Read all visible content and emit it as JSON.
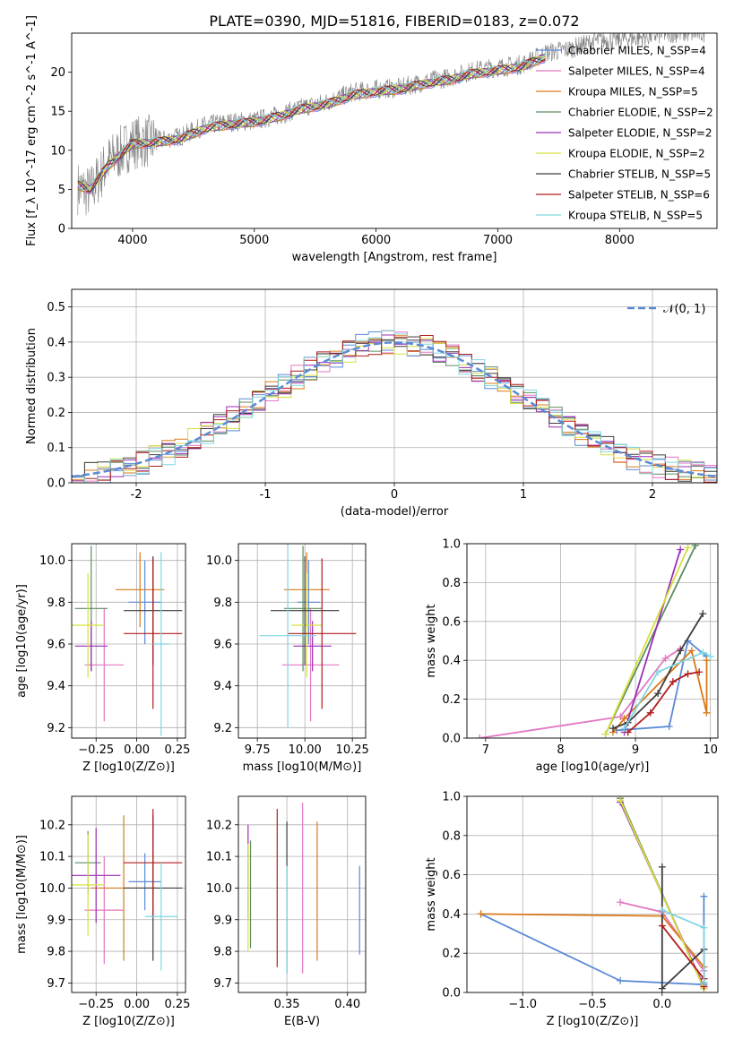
{
  "figure": {
    "title": "PLATE=0390, MJD=51816, FIBERID=0183, z=0.072"
  },
  "chart_data": [
    {
      "id": "spectrum",
      "type": "line",
      "xlabel": "wavelength [Angstrom, rest frame]",
      "ylabel": "Flux [f_λ 10^-17 erg cm^-2 s^-1 A^-1]",
      "xlim": [
        3500,
        8800
      ],
      "ylim": [
        0,
        25
      ],
      "xticks": [
        4000,
        5000,
        6000,
        7000,
        8000
      ],
      "yticks": [
        0,
        5,
        10,
        15,
        20
      ],
      "grid": false,
      "legend_position": "top-right",
      "data_color": "#808080",
      "data_points": [
        [
          3550,
          5.2
        ],
        [
          3650,
          4.6
        ],
        [
          3800,
          8.5
        ],
        [
          4000,
          11.0
        ],
        [
          4200,
          11.2
        ],
        [
          4400,
          11.8
        ],
        [
          4600,
          13.2
        ],
        [
          4800,
          13.6
        ],
        [
          5000,
          13.8
        ],
        [
          5200,
          14.5
        ],
        [
          5400,
          15.5
        ],
        [
          5600,
          16.2
        ],
        [
          5800,
          17.4
        ],
        [
          6000,
          17.8
        ],
        [
          6200,
          18.0
        ],
        [
          6400,
          18.8
        ],
        [
          6600,
          19.3
        ],
        [
          6800,
          20.2
        ],
        [
          7000,
          20.6
        ],
        [
          7200,
          21.0
        ],
        [
          7400,
          22.5
        ],
        [
          7600,
          23.0
        ],
        [
          7800,
          24.0
        ],
        [
          8000,
          24.2
        ],
        [
          8200,
          24.5
        ],
        [
          8400,
          25.0
        ],
        [
          8700,
          25.0
        ]
      ],
      "model_points": [
        [
          3550,
          5.5
        ],
        [
          3650,
          5.0
        ],
        [
          3800,
          8.0
        ],
        [
          4000,
          10.8
        ],
        [
          4200,
          11.0
        ],
        [
          4400,
          11.5
        ],
        [
          4600,
          12.8
        ],
        [
          4800,
          13.3
        ],
        [
          5000,
          13.6
        ],
        [
          5200,
          14.3
        ],
        [
          5400,
          15.3
        ],
        [
          5600,
          15.9
        ],
        [
          5800,
          17.0
        ],
        [
          6000,
          17.5
        ],
        [
          6200,
          17.8
        ],
        [
          6400,
          18.5
        ],
        [
          6600,
          19.0
        ],
        [
          6800,
          19.8
        ],
        [
          7000,
          20.2
        ],
        [
          7200,
          20.7
        ],
        [
          7400,
          22.0
        ]
      ],
      "series": [
        {
          "name": "Chabrier MILES, N_SSP=4",
          "color": "#5b8ad6"
        },
        {
          "name": "Salpeter MILES, N_SSP=4",
          "color": "#e377c2"
        },
        {
          "name": "Kroupa MILES, N_SSP=5",
          "color": "#d97a1a"
        },
        {
          "name": "Chabrier ELODIE, N_SSP=2",
          "color": "#5e8c61"
        },
        {
          "name": "Salpeter ELODIE, N_SSP=2",
          "color": "#9a2fb5"
        },
        {
          "name": "Kroupa ELODIE, N_SSP=2",
          "color": "#d6e03c"
        },
        {
          "name": "Chabrier STELIB, N_SSP=5",
          "color": "#3d3d3d"
        },
        {
          "name": "Salpeter STELIB, N_SSP=6",
          "color": "#b01c1c"
        },
        {
          "name": "Kroupa STELIB, N_SSP=5",
          "color": "#7fd6e0"
        }
      ]
    },
    {
      "id": "residual_histogram",
      "type": "line",
      "xlabel": "(data-model)/error",
      "ylabel": "Normed distribution",
      "xlim": [
        -2.5,
        2.5
      ],
      "ylim": [
        0,
        0.55
      ],
      "xticks": [
        -2,
        -1,
        0,
        1,
        2
      ],
      "yticks": [
        0.0,
        0.1,
        0.2,
        0.3,
        0.4,
        0.5
      ],
      "grid": true,
      "legend_position": "top-right",
      "reference": {
        "name": "𝒩(0, 1)",
        "mean": 0,
        "sigma": 1,
        "color": "#5b8ad6"
      },
      "bin_width": 0.1
    },
    {
      "id": "age_vs_Z",
      "type": "scatter",
      "xlabel": "Z [log10(Z/Z⊙)]",
      "ylabel": "age  [log10(age/yr)]",
      "xlim": [
        -0.4,
        0.3
      ],
      "ylim": [
        9.15,
        10.08
      ],
      "xticks": [
        -0.25,
        0.0,
        0.25
      ],
      "xticklabels": [
        "−0.25",
        "0.00",
        "0.25"
      ],
      "yticks": [
        9.2,
        9.4,
        9.6,
        9.8,
        10.0
      ],
      "grid": true,
      "points": [
        {
          "series": 0,
          "x": 0.05,
          "xerr": 0.1,
          "y": 9.8,
          "yerr": 0.2
        },
        {
          "series": 1,
          "x": -0.2,
          "xerr": 0.12,
          "y": 9.5,
          "yerr": 0.27
        },
        {
          "series": 2,
          "x": 0.02,
          "xerr": 0.15,
          "y": 9.86,
          "yerr": 0.18
        },
        {
          "series": 3,
          "x": -0.28,
          "xerr": 0.1,
          "y": 9.77,
          "yerr": 0.3
        },
        {
          "series": 4,
          "x": -0.28,
          "xerr": 0.1,
          "y": 9.59,
          "yerr": 0.12
        },
        {
          "series": 5,
          "x": -0.3,
          "xerr": 0.1,
          "y": 9.69,
          "yerr": 0.25
        },
        {
          "series": 6,
          "x": 0.1,
          "xerr": 0.18,
          "y": 9.76,
          "yerr": 0.26
        },
        {
          "series": 7,
          "x": 0.1,
          "xerr": 0.18,
          "y": 9.65,
          "yerr": 0.36
        },
        {
          "series": 8,
          "x": 0.15,
          "xerr": 0.05,
          "y": 9.6,
          "yerr": 0.44
        }
      ]
    },
    {
      "id": "age_vs_mass",
      "type": "scatter",
      "xlabel": "mass [log10(M/M⊙)]",
      "ylabel": "",
      "xlim": [
        9.65,
        10.32
      ],
      "ylim": [
        9.15,
        10.08
      ],
      "xticks": [
        9.75,
        10.0,
        10.25
      ],
      "xticklabels": [
        "9.75",
        "10.00",
        "10.25"
      ],
      "yticks": [
        9.2,
        9.4,
        9.6,
        9.8,
        10.0
      ],
      "grid": true,
      "points": [
        {
          "series": 0,
          "x": 10.02,
          "xerr": 0.06,
          "y": 9.8,
          "yerr": 0.2
        },
        {
          "series": 1,
          "x": 10.03,
          "xerr": 0.15,
          "y": 9.5,
          "yerr": 0.27
        },
        {
          "series": 2,
          "x": 10.01,
          "xerr": 0.12,
          "y": 9.86,
          "yerr": 0.18
        },
        {
          "series": 3,
          "x": 9.99,
          "xerr": 0.1,
          "y": 9.77,
          "yerr": 0.3
        },
        {
          "series": 4,
          "x": 10.04,
          "xerr": 0.1,
          "y": 9.59,
          "yerr": 0.12
        },
        {
          "series": 5,
          "x": 10.01,
          "xerr": 0.08,
          "y": 9.69,
          "yerr": 0.25
        },
        {
          "series": 6,
          "x": 10.0,
          "xerr": 0.18,
          "y": 9.76,
          "yerr": 0.26
        },
        {
          "series": 7,
          "x": 10.09,
          "xerr": 0.18,
          "y": 9.65,
          "yerr": 0.36
        },
        {
          "series": 8,
          "x": 9.91,
          "xerr": 0.15,
          "y": 9.64,
          "yerr": 0.44
        }
      ]
    },
    {
      "id": "massweight_vs_age",
      "type": "line",
      "xlabel": "age  [log10(age/yr)]",
      "ylabel": "mass weight",
      "xlim": [
        6.75,
        10.1
      ],
      "ylim": [
        0,
        1
      ],
      "xticks": [
        7,
        8,
        9,
        10
      ],
      "yticks": [
        0.0,
        0.2,
        0.4,
        0.6,
        0.8,
        1.0
      ],
      "grid": true,
      "series": [
        {
          "series": 0,
          "x": [
            8.75,
            9.45,
            9.7,
            9.95
          ],
          "y": [
            0.04,
            0.06,
            0.5,
            0.42
          ]
        },
        {
          "series": 1,
          "x": [
            6.92,
            8.8,
            9.4,
            9.6
          ],
          "y": [
            0.0,
            0.11,
            0.41,
            0.46
          ]
        },
        {
          "series": 2,
          "x": [
            8.7,
            8.85,
            9.75,
            9.95,
            9.95
          ],
          "y": [
            0.03,
            0.1,
            0.45,
            0.13,
            0.4
          ]
        },
        {
          "series": 3,
          "x": [
            8.6,
            9.8
          ],
          "y": [
            0.02,
            0.99
          ]
        },
        {
          "series": 4,
          "x": [
            8.85,
            9.6
          ],
          "y": [
            0.03,
            0.97
          ]
        },
        {
          "series": 5,
          "x": [
            8.6,
            9.7
          ],
          "y": [
            0.02,
            0.98
          ]
        },
        {
          "series": 6,
          "x": [
            8.7,
            8.9,
            9.3,
            9.6,
            9.9
          ],
          "y": [
            0.05,
            0.08,
            0.23,
            0.45,
            0.64
          ]
        },
        {
          "series": 7,
          "x": [
            8.9,
            9.2,
            9.5,
            9.7,
            9.85
          ],
          "y": [
            0.03,
            0.13,
            0.29,
            0.33,
            0.34
          ]
        },
        {
          "series": 8,
          "x": [
            8.85,
            9.3,
            9.9,
            10.0
          ],
          "y": [
            0.05,
            0.34,
            0.44,
            0.42
          ]
        }
      ]
    },
    {
      "id": "mass_vs_Z",
      "type": "scatter",
      "xlabel": "Z [log10(Z/Z⊙)]",
      "ylabel": "mass [log10(M/M⊙)]",
      "xlim": [
        -0.4,
        0.3
      ],
      "ylim": [
        9.67,
        10.29
      ],
      "xticks": [
        -0.25,
        0.0,
        0.25
      ],
      "xticklabels": [
        "−0.25",
        "0.00",
        "0.25"
      ],
      "yticks": [
        9.7,
        9.8,
        9.9,
        10.0,
        10.1,
        10.2
      ],
      "grid": true,
      "points": [
        {
          "series": 0,
          "x": 0.05,
          "xerr": 0.1,
          "y": 10.02,
          "yerr": 0.09
        },
        {
          "series": 1,
          "x": -0.2,
          "xerr": 0.12,
          "y": 9.93,
          "yerr": 0.17
        },
        {
          "series": 2,
          "x": -0.08,
          "xerr": 0.2,
          "y": 10.0,
          "yerr": 0.23
        },
        {
          "series": 3,
          "x": -0.3,
          "xerr": 0.08,
          "y": 10.08,
          "yerr": 0.1
        },
        {
          "series": 4,
          "x": -0.25,
          "xerr": 0.15,
          "y": 10.04,
          "yerr": 0.15
        },
        {
          "series": 5,
          "x": -0.3,
          "xerr": 0.1,
          "y": 10.01,
          "yerr": 0.16
        },
        {
          "series": 6,
          "x": 0.1,
          "xerr": 0.18,
          "y": 10.0,
          "yerr": 0.23
        },
        {
          "series": 7,
          "x": 0.1,
          "xerr": 0.18,
          "y": 10.08,
          "yerr": 0.17
        },
        {
          "series": 8,
          "x": 0.15,
          "xerr": 0.1,
          "y": 9.91,
          "yerr": 0.17
        }
      ]
    },
    {
      "id": "mass_vs_EBV",
      "type": "scatter",
      "xlabel": "E(B-V)",
      "ylabel": "",
      "xlim": [
        0.31,
        0.415
      ],
      "ylim": [
        9.67,
        10.29
      ],
      "xticks": [
        0.35,
        0.4
      ],
      "xticklabels": [
        "0.35",
        "0.40"
      ],
      "yticks": [
        9.7,
        9.8,
        9.9,
        10.0,
        10.1,
        10.2
      ],
      "grid": true,
      "points": [
        {
          "series": 0,
          "x": 0.41,
          "y": 9.93,
          "yerr": 0.14
        },
        {
          "series": 1,
          "x": 0.363,
          "y": 10.0,
          "yerr": 0.27
        },
        {
          "series": 2,
          "x": 0.375,
          "y": 9.99,
          "yerr": 0.22
        },
        {
          "series": 3,
          "x": 0.32,
          "y": 9.98,
          "yerr": 0.17
        },
        {
          "series": 4,
          "x": 0.318,
          "y": 10.05,
          "yerr": 0.15
        },
        {
          "series": 5,
          "x": 0.318,
          "y": 9.97,
          "yerr": 0.17
        },
        {
          "series": 6,
          "x": 0.35,
          "y": 9.97,
          "yerr": 0.24
        },
        {
          "series": 7,
          "x": 0.342,
          "y": 10.0,
          "yerr": 0.25
        },
        {
          "series": 8,
          "x": 0.35,
          "y": 9.9,
          "yerr": 0.17
        }
      ]
    },
    {
      "id": "massweight_vs_Z",
      "type": "line",
      "xlabel": "Z [log10(Z/Z⊙)]",
      "ylabel": "mass weight",
      "xlim": [
        -1.4,
        0.4
      ],
      "ylim": [
        0,
        1
      ],
      "xticks": [
        -1.0,
        -0.5,
        0.0
      ],
      "xticklabels": [
        "−1.0",
        "−0.5",
        "0.0"
      ],
      "yticks": [
        0.0,
        0.2,
        0.4,
        0.6,
        0.8,
        1.0
      ],
      "grid": true,
      "series": [
        {
          "series": 0,
          "x": [
            -1.3,
            -0.3,
            0.3,
            0.3
          ],
          "y": [
            0.4,
            0.06,
            0.04,
            0.49
          ]
        },
        {
          "series": 1,
          "x": [
            -0.3,
            0.0,
            0.3
          ],
          "y": [
            0.46,
            0.41,
            0.11
          ]
        },
        {
          "series": 2,
          "x": [
            -1.3,
            0.0,
            0.3,
            0.3
          ],
          "y": [
            0.4,
            0.39,
            0.13,
            0.03
          ]
        },
        {
          "series": 3,
          "x": [
            -0.3,
            0.3
          ],
          "y": [
            0.99,
            0.02
          ]
        },
        {
          "series": 4,
          "x": [
            -0.3,
            0.3
          ],
          "y": [
            0.97,
            0.03
          ]
        },
        {
          "series": 5,
          "x": [
            -0.3,
            0.3
          ],
          "y": [
            0.98,
            0.02
          ]
        },
        {
          "series": 6,
          "x": [
            0.0,
            0.0,
            0.3,
            0.3
          ],
          "y": [
            0.64,
            0.02,
            0.22,
            0.05
          ]
        },
        {
          "series": 7,
          "x": [
            0.0,
            0.3,
            0.3
          ],
          "y": [
            0.34,
            0.07,
            0.03
          ]
        },
        {
          "series": 8,
          "x": [
            0.0,
            0.3,
            0.3
          ],
          "y": [
            0.42,
            0.33,
            0.05
          ]
        }
      ]
    }
  ]
}
